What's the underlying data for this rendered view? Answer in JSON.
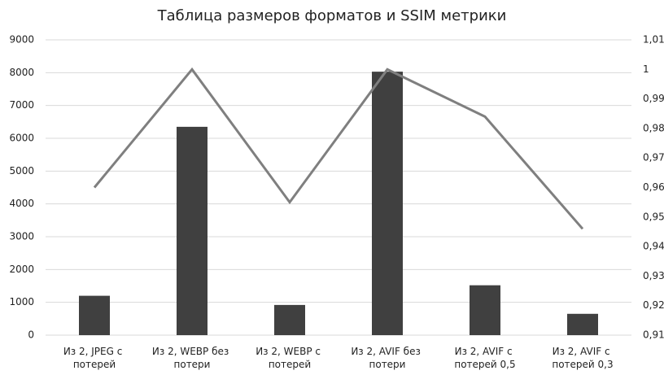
{
  "chart_data": {
    "type": "bar_line",
    "title": "Таблица размеров форматов и SSIM метрики",
    "categories": [
      "Из 2, JPEG с потерей",
      "Из 2, WEBP без потери",
      "Из 2, WEBP с потерей",
      "Из 2, AVIF без потери",
      "Из 2, AVIF с потерей 0,5",
      "Из 2, AVIF с потерей 0,3"
    ],
    "series": [
      {
        "type": "bar",
        "color": "#404040",
        "values": [
          1200,
          6350,
          920,
          8030,
          1520,
          650
        ]
      },
      {
        "type": "line",
        "axis": "y2",
        "color": "#7f7f7f",
        "values": [
          0.96,
          1.0,
          0.955,
          1.0,
          0.984,
          0.946
        ]
      }
    ],
    "ylim": [
      0,
      9000
    ],
    "yticks": [
      0,
      1000,
      2000,
      3000,
      4000,
      5000,
      6000,
      7000,
      8000,
      9000
    ],
    "y2lim": [
      0.91,
      1.01
    ],
    "y2ticks": [
      {
        "value": 0.91,
        "label": "0,91"
      },
      {
        "value": 0.92,
        "label": "0,92"
      },
      {
        "value": 0.93,
        "label": "0,93"
      },
      {
        "value": 0.94,
        "label": "0,94"
      },
      {
        "value": 0.95,
        "label": "0,95"
      },
      {
        "value": 0.96,
        "label": "0,96"
      },
      {
        "value": 0.97,
        "label": "0,97"
      },
      {
        "value": 0.98,
        "label": "0,98"
      },
      {
        "value": 0.99,
        "label": "0,99"
      },
      {
        "value": 1,
        "label": "1"
      },
      {
        "value": 1.01,
        "label": "1,01"
      }
    ],
    "grid": true
  }
}
